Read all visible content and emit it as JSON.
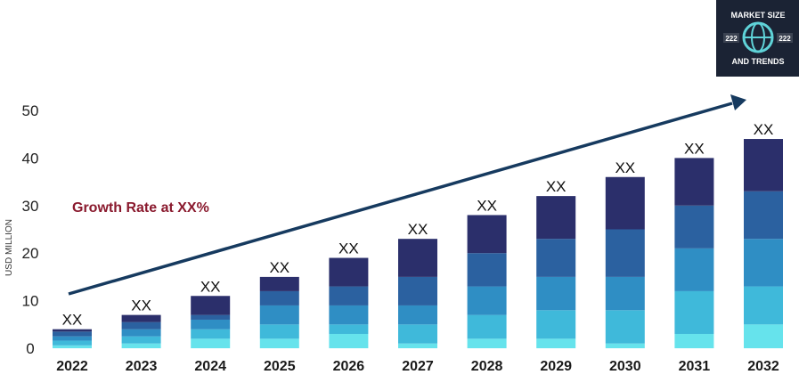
{
  "chart_data": {
    "type": "bar",
    "stacked": true,
    "categories": [
      "2022",
      "2023",
      "2024",
      "2025",
      "2026",
      "2027",
      "2028",
      "2029",
      "2030",
      "2031",
      "2032"
    ],
    "series": [
      {
        "color": "#66e3ec",
        "values": [
          0.6,
          1.0,
          2.0,
          2.0,
          3.0,
          1.0,
          2.0,
          2.0,
          1.0,
          3.0,
          5.0
        ]
      },
      {
        "color": "#3fb9da",
        "values": [
          1.0,
          1.5,
          2.0,
          3.0,
          2.0,
          4.0,
          5.0,
          6.0,
          7.0,
          9.0,
          8.0
        ]
      },
      {
        "color": "#2f8ec4",
        "values": [
          0.9,
          1.5,
          2.0,
          4.0,
          4.0,
          4.0,
          6.0,
          7.0,
          7.0,
          9.0,
          10.0
        ]
      },
      {
        "color": "#2b61a0",
        "values": [
          1.0,
          1.5,
          1.0,
          3.0,
          4.0,
          6.0,
          7.0,
          8.0,
          10.0,
          9.0,
          10.0
        ]
      },
      {
        "color": "#2b2f6b",
        "values": [
          0.5,
          1.5,
          4.0,
          3.0,
          6.0,
          8.0,
          8.0,
          9.0,
          11.0,
          10.0,
          11.0
        ]
      }
    ],
    "data_labels": [
      "XX",
      "XX",
      "XX",
      "XX",
      "XX",
      "XX",
      "XX",
      "XX",
      "XX",
      "XX",
      "XX"
    ],
    "ylabel": "USD MILLION",
    "ylim": [
      0,
      50
    ],
    "yticks": [
      "0",
      "10",
      "20",
      "30",
      "40",
      "50"
    ],
    "annotation": "Growth Rate at XX%",
    "grid": false,
    "legend": "none",
    "trend_arrow_color": "#163a5f"
  },
  "logo": {
    "line1": "MARKET SIZE",
    "line2": "AND TRENDS",
    "badge_left": "222",
    "badge_right": "222",
    "background": "#1b2334",
    "globe_color": "#5fd3d8"
  }
}
